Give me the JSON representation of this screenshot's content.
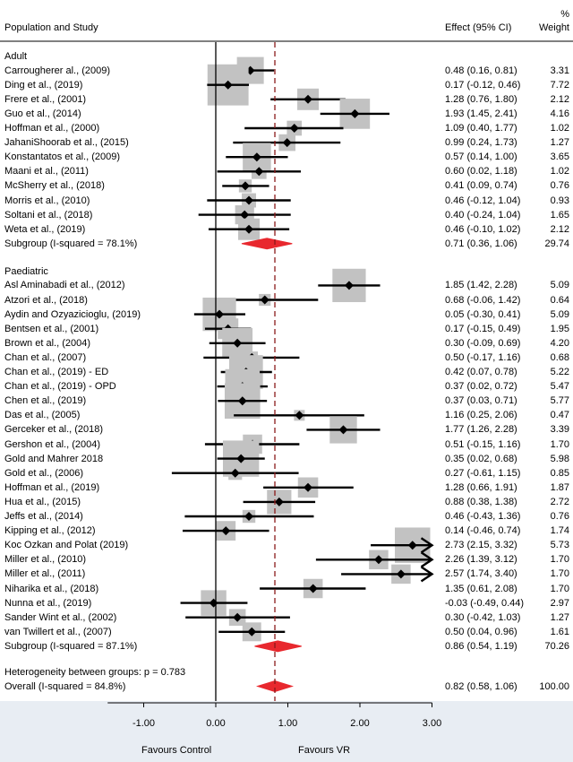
{
  "chart_data": {
    "type": "forest",
    "headers": {
      "study": "Population and Study",
      "effect": "Effect (95% CI)",
      "weight_symbol": "%",
      "weight": "Weight"
    },
    "x_axis": {
      "ticks": [
        -1,
        0,
        1,
        2,
        3
      ],
      "tick_labels": [
        "-1.00",
        "0.00",
        "1.00",
        "2.00",
        "3.00"
      ],
      "xlim": [
        -1.5,
        3.0
      ],
      "reference_line": 0,
      "overall_effect_line": 0.82,
      "left_label": "Favours Control",
      "right_label": "Favours VR"
    },
    "groups": [
      {
        "name": "Adult",
        "studies": [
          {
            "study": "Carrougherer al.,  (2009)",
            "effect": 0.48,
            "lower": 0.16,
            "upper": 0.81,
            "ci_text": "0.48 (0.16, 0.81)",
            "weight": "3.31"
          },
          {
            "study": "Ding et al., (2019)",
            "effect": 0.17,
            "lower": -0.12,
            "upper": 0.46,
            "ci_text": "0.17 (-0.12, 0.46)",
            "weight": "7.72"
          },
          {
            "study": "Frere et al., (2001)",
            "effect": 1.28,
            "lower": 0.76,
            "upper": 1.8,
            "ci_text": "1.28 (0.76, 1.80)",
            "weight": "2.12"
          },
          {
            "study": "Guo et al., (2014)",
            "effect": 1.93,
            "lower": 1.45,
            "upper": 2.41,
            "ci_text": "1.93 (1.45, 2.41)",
            "weight": "4.16"
          },
          {
            "study": "Hoffman  et al., (2000)",
            "effect": 1.09,
            "lower": 0.4,
            "upper": 1.77,
            "ci_text": "1.09 (0.40, 1.77)",
            "weight": "1.02"
          },
          {
            "study": "JahaniShoorab et al., (2015)",
            "effect": 0.99,
            "lower": 0.24,
            "upper": 1.73,
            "ci_text": "0.99 (0.24, 1.73)",
            "weight": "1.27"
          },
          {
            "study": "Konstantatos et al., (2009)",
            "effect": 0.57,
            "lower": 0.14,
            "upper": 1.0,
            "ci_text": "0.57 (0.14, 1.00)",
            "weight": "3.65"
          },
          {
            "study": "Maani et al., (2011)",
            "effect": 0.6,
            "lower": 0.02,
            "upper": 1.18,
            "ci_text": "0.60 (0.02, 1.18)",
            "weight": "1.02"
          },
          {
            "study": "McSherry et al., (2018)",
            "effect": 0.41,
            "lower": 0.09,
            "upper": 0.74,
            "ci_text": "0.41 (0.09, 0.74)",
            "weight": "0.76"
          },
          {
            "study": "Morris et al., (2010)",
            "effect": 0.46,
            "lower": -0.12,
            "upper": 1.04,
            "ci_text": "0.46 (-0.12, 1.04)",
            "weight": "0.93"
          },
          {
            "study": "Soltani et al., (2018)",
            "effect": 0.4,
            "lower": -0.24,
            "upper": 1.04,
            "ci_text": "0.40 (-0.24, 1.04)",
            "weight": "1.65"
          },
          {
            "study": "Weta et al., (2019)",
            "effect": 0.46,
            "lower": -0.1,
            "upper": 1.02,
            "ci_text": "0.46 (-0.10, 1.02)",
            "weight": "2.12"
          }
        ],
        "subgroup": {
          "label": "Subgroup (I-squared = 78.1%)",
          "effect": 0.71,
          "lower": 0.36,
          "upper": 1.06,
          "ci_text": "0.71 (0.36, 1.06)",
          "weight": "29.74"
        }
      },
      {
        "name": "Paediatric",
        "studies": [
          {
            "study": "Asl Aminabadi et al., (2012)",
            "effect": 1.85,
            "lower": 1.42,
            "upper": 2.28,
            "ci_text": "1.85 (1.42, 2.28)",
            "weight": "5.09"
          },
          {
            "study": "Atzori et al., (2018)",
            "effect": 0.68,
            "lower": -0.06,
            "upper": 1.42,
            "ci_text": "0.68 (-0.06, 1.42)",
            "weight": "0.64"
          },
          {
            "study": "Aydin and Ozyazicioglu, (2019)",
            "effect": 0.05,
            "lower": -0.3,
            "upper": 0.41,
            "ci_text": "0.05 (-0.30, 0.41)",
            "weight": "5.09"
          },
          {
            "study": "Bentsen et al., (2001)",
            "effect": 0.17,
            "lower": -0.15,
            "upper": 0.49,
            "ci_text": "0.17 (-0.15, 0.49)",
            "weight": "1.95"
          },
          {
            "study": "Brown et al., (2004)",
            "effect": 0.3,
            "lower": -0.09,
            "upper": 0.69,
            "ci_text": "0.30 (-0.09, 0.69)",
            "weight": "4.20"
          },
          {
            "study": "Chan et al., (2007)",
            "effect": 0.5,
            "lower": -0.17,
            "upper": 1.16,
            "ci_text": "0.50 (-0.17, 1.16)",
            "weight": "0.68"
          },
          {
            "study": "Chan et al., (2019) - ED",
            "effect": 0.42,
            "lower": 0.07,
            "upper": 0.78,
            "ci_text": "0.42 (0.07, 0.78)",
            "weight": "5.22"
          },
          {
            "study": "Chan et al., (2019) - OPD",
            "effect": 0.37,
            "lower": 0.02,
            "upper": 0.72,
            "ci_text": "0.37 (0.02, 0.72)",
            "weight": "5.47"
          },
          {
            "study": "Chen et al., (2019)",
            "effect": 0.37,
            "lower": 0.03,
            "upper": 0.71,
            "ci_text": "0.37 (0.03, 0.71)",
            "weight": "5.77"
          },
          {
            "study": "Das et al., (2005)",
            "effect": 1.16,
            "lower": 0.25,
            "upper": 2.06,
            "ci_text": "1.16 (0.25, 2.06)",
            "weight": "0.47"
          },
          {
            "study": "Gerceker et al., (2018)",
            "effect": 1.77,
            "lower": 1.26,
            "upper": 2.28,
            "ci_text": "1.77 (1.26, 2.28)",
            "weight": "3.39"
          },
          {
            "study": "Gershon et al., (2004)",
            "effect": 0.51,
            "lower": -0.15,
            "upper": 1.16,
            "ci_text": "0.51 (-0.15, 1.16)",
            "weight": "1.70"
          },
          {
            "study": "Gold and Mahrer 2018",
            "effect": 0.35,
            "lower": 0.02,
            "upper": 0.68,
            "ci_text": "0.35 (0.02, 0.68)",
            "weight": "5.98"
          },
          {
            "study": "Gold et al., (2006)",
            "effect": 0.27,
            "lower": -0.61,
            "upper": 1.15,
            "ci_text": "0.27 (-0.61, 1.15)",
            "weight": "0.85"
          },
          {
            "study": "Hoffman et al., (2019)",
            "effect": 1.28,
            "lower": 0.66,
            "upper": 1.91,
            "ci_text": "1.28 (0.66, 1.91)",
            "weight": "1.87"
          },
          {
            "study": "Hua et al., (2015)",
            "effect": 0.88,
            "lower": 0.38,
            "upper": 1.38,
            "ci_text": "0.88 (0.38, 1.38)",
            "weight": "2.72"
          },
          {
            "study": "Jeffs et al., (2014)",
            "effect": 0.46,
            "lower": -0.43,
            "upper": 1.36,
            "ci_text": "0.46 (-0.43, 1.36)",
            "weight": "0.76"
          },
          {
            "study": "Kipping et al., (2012)",
            "effect": 0.14,
            "lower": -0.46,
            "upper": 0.74,
            "ci_text": "0.14 (-0.46, 0.74)",
            "weight": "1.74"
          },
          {
            "study": "Koc Ozkan and Polat (2019)",
            "effect": 2.73,
            "lower": 2.15,
            "upper": 3.32,
            "ci_text": "2.73 (2.15, 3.32)",
            "weight": "5.73"
          },
          {
            "study": "Miller et al., (2010)",
            "effect": 2.26,
            "lower": 1.39,
            "upper": 3.12,
            "ci_text": "2.26 (1.39, 3.12)",
            "weight": "1.70"
          },
          {
            "study": "Miller et al., (2011)",
            "effect": 2.57,
            "lower": 1.74,
            "upper": 3.4,
            "ci_text": "2.57 (1.74, 3.40)",
            "weight": "1.70"
          },
          {
            "study": "Niharika et al., (2018)",
            "effect": 1.35,
            "lower": 0.61,
            "upper": 2.08,
            "ci_text": "1.35 (0.61, 2.08)",
            "weight": "1.70"
          },
          {
            "study": "Nunna et al., (2019)",
            "effect": -0.03,
            "lower": -0.49,
            "upper": 0.44,
            "ci_text": "-0.03 (-0.49, 0.44)",
            "weight": "2.97"
          },
          {
            "study": "Sander Wint et al., (2002)",
            "effect": 0.3,
            "lower": -0.42,
            "upper": 1.03,
            "ci_text": "0.30 (-0.42, 1.03)",
            "weight": "1.27"
          },
          {
            "study": "van Twillert et al., (2007)",
            "effect": 0.5,
            "lower": 0.04,
            "upper": 0.96,
            "ci_text": "0.50 (0.04, 0.96)",
            "weight": "1.61"
          }
        ],
        "subgroup": {
          "label": "Subgroup (I-squared = 87.1%)",
          "effect": 0.86,
          "lower": 0.54,
          "upper": 1.19,
          "ci_text": "0.86 (0.54, 1.19)",
          "weight": "70.26"
        }
      }
    ],
    "heterogeneity": "Heterogeneity between groups: p = 0.783",
    "overall": {
      "label": "Overall (I-squared = 84.8%)",
      "effect": 0.82,
      "lower": 0.58,
      "upper": 1.06,
      "ci_text": "0.82 (0.58, 1.06)",
      "weight": "100.00"
    },
    "colors": {
      "square": "#c2c2c2",
      "diamond": "#e8282e",
      "reference_line": "#000000",
      "effect_line": "#8b1a1a",
      "footer_bg": "#e8edf3"
    }
  }
}
